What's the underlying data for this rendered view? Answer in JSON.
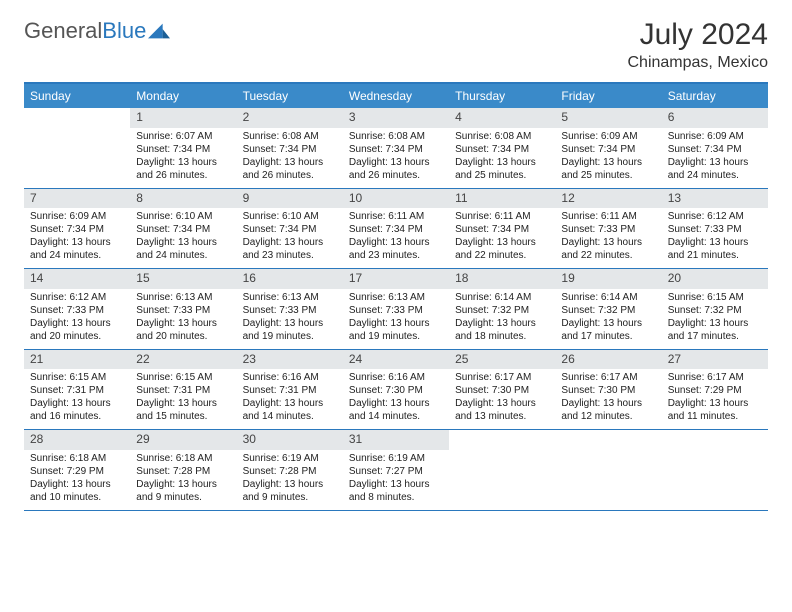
{
  "brand": {
    "part1": "General",
    "part2": "Blue"
  },
  "title": "July 2024",
  "location": "Chinampas, Mexico",
  "colors": {
    "header_bar": "#3a8ac9",
    "accent": "#2a78bd",
    "daynum_bg": "#e4e7e9",
    "text": "#222222",
    "bg": "#ffffff"
  },
  "day_headers": [
    "Sunday",
    "Monday",
    "Tuesday",
    "Wednesday",
    "Thursday",
    "Friday",
    "Saturday"
  ],
  "weeks": [
    [
      null,
      {
        "n": "1",
        "sr": "Sunrise: 6:07 AM",
        "ss": "Sunset: 7:34 PM",
        "d1": "Daylight: 13 hours",
        "d2": "and 26 minutes."
      },
      {
        "n": "2",
        "sr": "Sunrise: 6:08 AM",
        "ss": "Sunset: 7:34 PM",
        "d1": "Daylight: 13 hours",
        "d2": "and 26 minutes."
      },
      {
        "n": "3",
        "sr": "Sunrise: 6:08 AM",
        "ss": "Sunset: 7:34 PM",
        "d1": "Daylight: 13 hours",
        "d2": "and 26 minutes."
      },
      {
        "n": "4",
        "sr": "Sunrise: 6:08 AM",
        "ss": "Sunset: 7:34 PM",
        "d1": "Daylight: 13 hours",
        "d2": "and 25 minutes."
      },
      {
        "n": "5",
        "sr": "Sunrise: 6:09 AM",
        "ss": "Sunset: 7:34 PM",
        "d1": "Daylight: 13 hours",
        "d2": "and 25 minutes."
      },
      {
        "n": "6",
        "sr": "Sunrise: 6:09 AM",
        "ss": "Sunset: 7:34 PM",
        "d1": "Daylight: 13 hours",
        "d2": "and 24 minutes."
      }
    ],
    [
      {
        "n": "7",
        "sr": "Sunrise: 6:09 AM",
        "ss": "Sunset: 7:34 PM",
        "d1": "Daylight: 13 hours",
        "d2": "and 24 minutes."
      },
      {
        "n": "8",
        "sr": "Sunrise: 6:10 AM",
        "ss": "Sunset: 7:34 PM",
        "d1": "Daylight: 13 hours",
        "d2": "and 24 minutes."
      },
      {
        "n": "9",
        "sr": "Sunrise: 6:10 AM",
        "ss": "Sunset: 7:34 PM",
        "d1": "Daylight: 13 hours",
        "d2": "and 23 minutes."
      },
      {
        "n": "10",
        "sr": "Sunrise: 6:11 AM",
        "ss": "Sunset: 7:34 PM",
        "d1": "Daylight: 13 hours",
        "d2": "and 23 minutes."
      },
      {
        "n": "11",
        "sr": "Sunrise: 6:11 AM",
        "ss": "Sunset: 7:34 PM",
        "d1": "Daylight: 13 hours",
        "d2": "and 22 minutes."
      },
      {
        "n": "12",
        "sr": "Sunrise: 6:11 AM",
        "ss": "Sunset: 7:33 PM",
        "d1": "Daylight: 13 hours",
        "d2": "and 22 minutes."
      },
      {
        "n": "13",
        "sr": "Sunrise: 6:12 AM",
        "ss": "Sunset: 7:33 PM",
        "d1": "Daylight: 13 hours",
        "d2": "and 21 minutes."
      }
    ],
    [
      {
        "n": "14",
        "sr": "Sunrise: 6:12 AM",
        "ss": "Sunset: 7:33 PM",
        "d1": "Daylight: 13 hours",
        "d2": "and 20 minutes."
      },
      {
        "n": "15",
        "sr": "Sunrise: 6:13 AM",
        "ss": "Sunset: 7:33 PM",
        "d1": "Daylight: 13 hours",
        "d2": "and 20 minutes."
      },
      {
        "n": "16",
        "sr": "Sunrise: 6:13 AM",
        "ss": "Sunset: 7:33 PM",
        "d1": "Daylight: 13 hours",
        "d2": "and 19 minutes."
      },
      {
        "n": "17",
        "sr": "Sunrise: 6:13 AM",
        "ss": "Sunset: 7:33 PM",
        "d1": "Daylight: 13 hours",
        "d2": "and 19 minutes."
      },
      {
        "n": "18",
        "sr": "Sunrise: 6:14 AM",
        "ss": "Sunset: 7:32 PM",
        "d1": "Daylight: 13 hours",
        "d2": "and 18 minutes."
      },
      {
        "n": "19",
        "sr": "Sunrise: 6:14 AM",
        "ss": "Sunset: 7:32 PM",
        "d1": "Daylight: 13 hours",
        "d2": "and 17 minutes."
      },
      {
        "n": "20",
        "sr": "Sunrise: 6:15 AM",
        "ss": "Sunset: 7:32 PM",
        "d1": "Daylight: 13 hours",
        "d2": "and 17 minutes."
      }
    ],
    [
      {
        "n": "21",
        "sr": "Sunrise: 6:15 AM",
        "ss": "Sunset: 7:31 PM",
        "d1": "Daylight: 13 hours",
        "d2": "and 16 minutes."
      },
      {
        "n": "22",
        "sr": "Sunrise: 6:15 AM",
        "ss": "Sunset: 7:31 PM",
        "d1": "Daylight: 13 hours",
        "d2": "and 15 minutes."
      },
      {
        "n": "23",
        "sr": "Sunrise: 6:16 AM",
        "ss": "Sunset: 7:31 PM",
        "d1": "Daylight: 13 hours",
        "d2": "and 14 minutes."
      },
      {
        "n": "24",
        "sr": "Sunrise: 6:16 AM",
        "ss": "Sunset: 7:30 PM",
        "d1": "Daylight: 13 hours",
        "d2": "and 14 minutes."
      },
      {
        "n": "25",
        "sr": "Sunrise: 6:17 AM",
        "ss": "Sunset: 7:30 PM",
        "d1": "Daylight: 13 hours",
        "d2": "and 13 minutes."
      },
      {
        "n": "26",
        "sr": "Sunrise: 6:17 AM",
        "ss": "Sunset: 7:30 PM",
        "d1": "Daylight: 13 hours",
        "d2": "and 12 minutes."
      },
      {
        "n": "27",
        "sr": "Sunrise: 6:17 AM",
        "ss": "Sunset: 7:29 PM",
        "d1": "Daylight: 13 hours",
        "d2": "and 11 minutes."
      }
    ],
    [
      {
        "n": "28",
        "sr": "Sunrise: 6:18 AM",
        "ss": "Sunset: 7:29 PM",
        "d1": "Daylight: 13 hours",
        "d2": "and 10 minutes."
      },
      {
        "n": "29",
        "sr": "Sunrise: 6:18 AM",
        "ss": "Sunset: 7:28 PM",
        "d1": "Daylight: 13 hours",
        "d2": "and 9 minutes."
      },
      {
        "n": "30",
        "sr": "Sunrise: 6:19 AM",
        "ss": "Sunset: 7:28 PM",
        "d1": "Daylight: 13 hours",
        "d2": "and 9 minutes."
      },
      {
        "n": "31",
        "sr": "Sunrise: 6:19 AM",
        "ss": "Sunset: 7:27 PM",
        "d1": "Daylight: 13 hours",
        "d2": "and 8 minutes."
      },
      null,
      null,
      null
    ]
  ]
}
